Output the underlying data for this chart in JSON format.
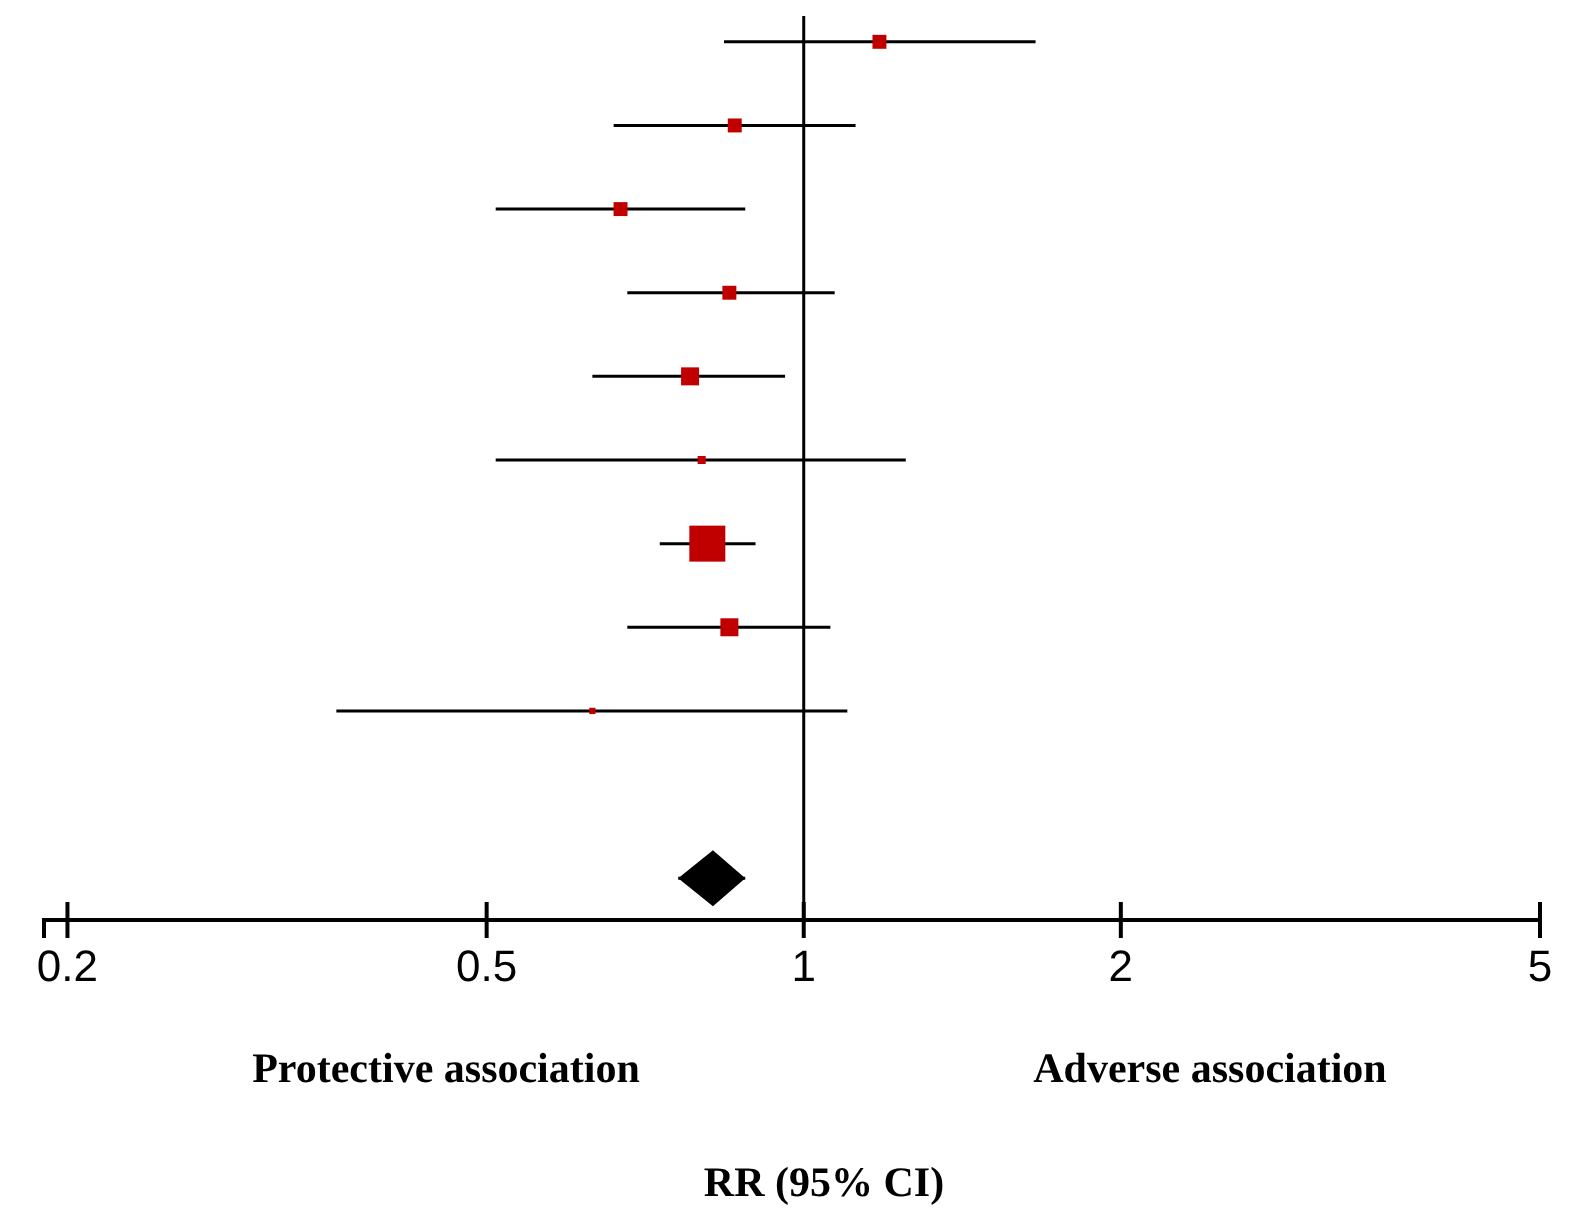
{
  "chart_data": {
    "type": "scatter",
    "orientation": "horizontal",
    "log": "x",
    "xlabel": "RR (95% CI)",
    "annotations": [
      "Protective association",
      "Adverse association"
    ],
    "categories": [
      null,
      null,
      null,
      null,
      null,
      null,
      null,
      null,
      null,
      null,
      null
    ],
    "xlim": [
      0.19,
      5
    ],
    "xticks": [
      0.2,
      0.5,
      1,
      2,
      5
    ],
    "grid": false,
    "tick_labels": "x",
    "ref_lines": [
      {
        "axis": "x",
        "value": 1,
        "color": "#000000"
      }
    ],
    "series": [
      {
        "type": "bubble",
        "marker": "square",
        "color": "#c00000",
        "values": [
          1.18,
          0.86,
          0.67,
          0.85,
          0.78,
          0.8,
          0.81,
          0.85,
          0.63,
          null,
          null
        ],
        "sizes": [
          0.15,
          0.15,
          0.15,
          0.15,
          0.25,
          0.05,
          1,
          0.25,
          0.03,
          null,
          null
        ],
        "errors": [
          [
            0.84,
            1.66
          ],
          [
            0.66,
            1.12
          ],
          [
            0.51,
            0.88
          ],
          [
            0.68,
            1.07
          ],
          [
            0.63,
            0.96
          ],
          [
            0.51,
            1.25
          ],
          [
            0.73,
            0.9
          ],
          [
            0.68,
            1.06
          ],
          [
            0.36,
            1.1
          ],
          null,
          null
        ]
      },
      {
        "marker": "diamond",
        "color": "#000000",
        "values": [
          null,
          null,
          null,
          null,
          null,
          null,
          null,
          null,
          null,
          null,
          0.82
        ],
        "errors": [
          null,
          null,
          null,
          null,
          null,
          null,
          null,
          null,
          null,
          null,
          [
            0.76,
            0.88
          ]
        ]
      }
    ]
  }
}
